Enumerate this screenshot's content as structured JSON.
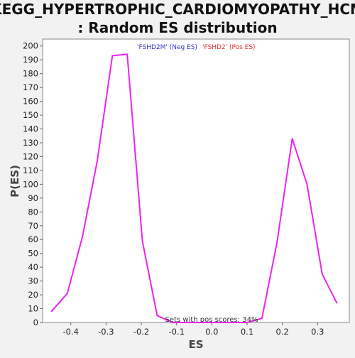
{
  "chart_data": {
    "type": "line",
    "title": "KEGG_HYPERTROPHIC_CARDIOMYOPATHY_HCM",
    "subtitle": ": Random ES distribution",
    "xlabel": "ES",
    "ylabel": "P(ES)",
    "xlim": [
      -0.48,
      0.39
    ],
    "ylim": [
      0,
      205
    ],
    "xticks": [
      "-0.4",
      "-0.3",
      "-0.2",
      "-0.1",
      "0.0",
      "0.1",
      "0.2",
      "0.3"
    ],
    "yticks": [
      "0",
      "10",
      "20",
      "30",
      "40",
      "50",
      "60",
      "70",
      "80",
      "90",
      "100",
      "110",
      "120",
      "130",
      "140",
      "150",
      "160",
      "170",
      "180",
      "190",
      "200"
    ],
    "grid": false,
    "legend": [
      {
        "label": "'FSHD2M' (Neg ES)",
        "color": "#3333cc"
      },
      {
        "label": "'FSHD2' (Pos ES)",
        "color": "#e03030"
      }
    ],
    "annotation": "Sets with pos scores: 34%",
    "series": [
      {
        "color": "#ee22ee",
        "points": [
          [
            -0.455,
            8
          ],
          [
            -0.41,
            21
          ],
          [
            -0.367,
            62
          ],
          [
            -0.325,
            117
          ],
          [
            -0.282,
            193
          ],
          [
            -0.24,
            194
          ],
          [
            -0.197,
            59
          ],
          [
            -0.155,
            5
          ],
          [
            -0.112,
            0
          ],
          [
            -0.07,
            0
          ],
          [
            -0.028,
            0
          ],
          [
            0.015,
            0
          ],
          [
            0.057,
            0
          ],
          [
            0.1,
            0
          ],
          [
            0.142,
            3
          ],
          [
            0.185,
            58
          ],
          [
            0.228,
            133
          ],
          [
            0.27,
            100
          ],
          [
            0.313,
            35
          ],
          [
            0.355,
            14
          ]
        ]
      }
    ]
  }
}
